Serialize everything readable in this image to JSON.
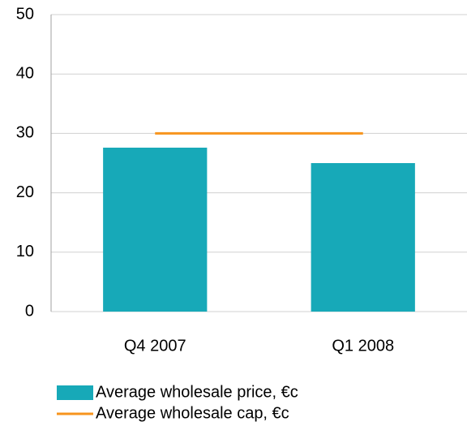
{
  "chart_data": {
    "type": "bar",
    "categories": [
      "Q4 2007",
      "Q1 2008"
    ],
    "series": [
      {
        "name": "Average wholesale price, €c",
        "type": "bar",
        "color": "#17a9b8",
        "values": [
          27.6,
          25
        ]
      },
      {
        "name": "Average wholesale cap, €c",
        "type": "line",
        "color": "#f7941d",
        "values": [
          30,
          30
        ]
      }
    ],
    "ylim": [
      0,
      50
    ],
    "yticks": [
      0,
      10,
      20,
      30,
      40,
      50
    ],
    "grid": true,
    "legend": "bottom"
  }
}
